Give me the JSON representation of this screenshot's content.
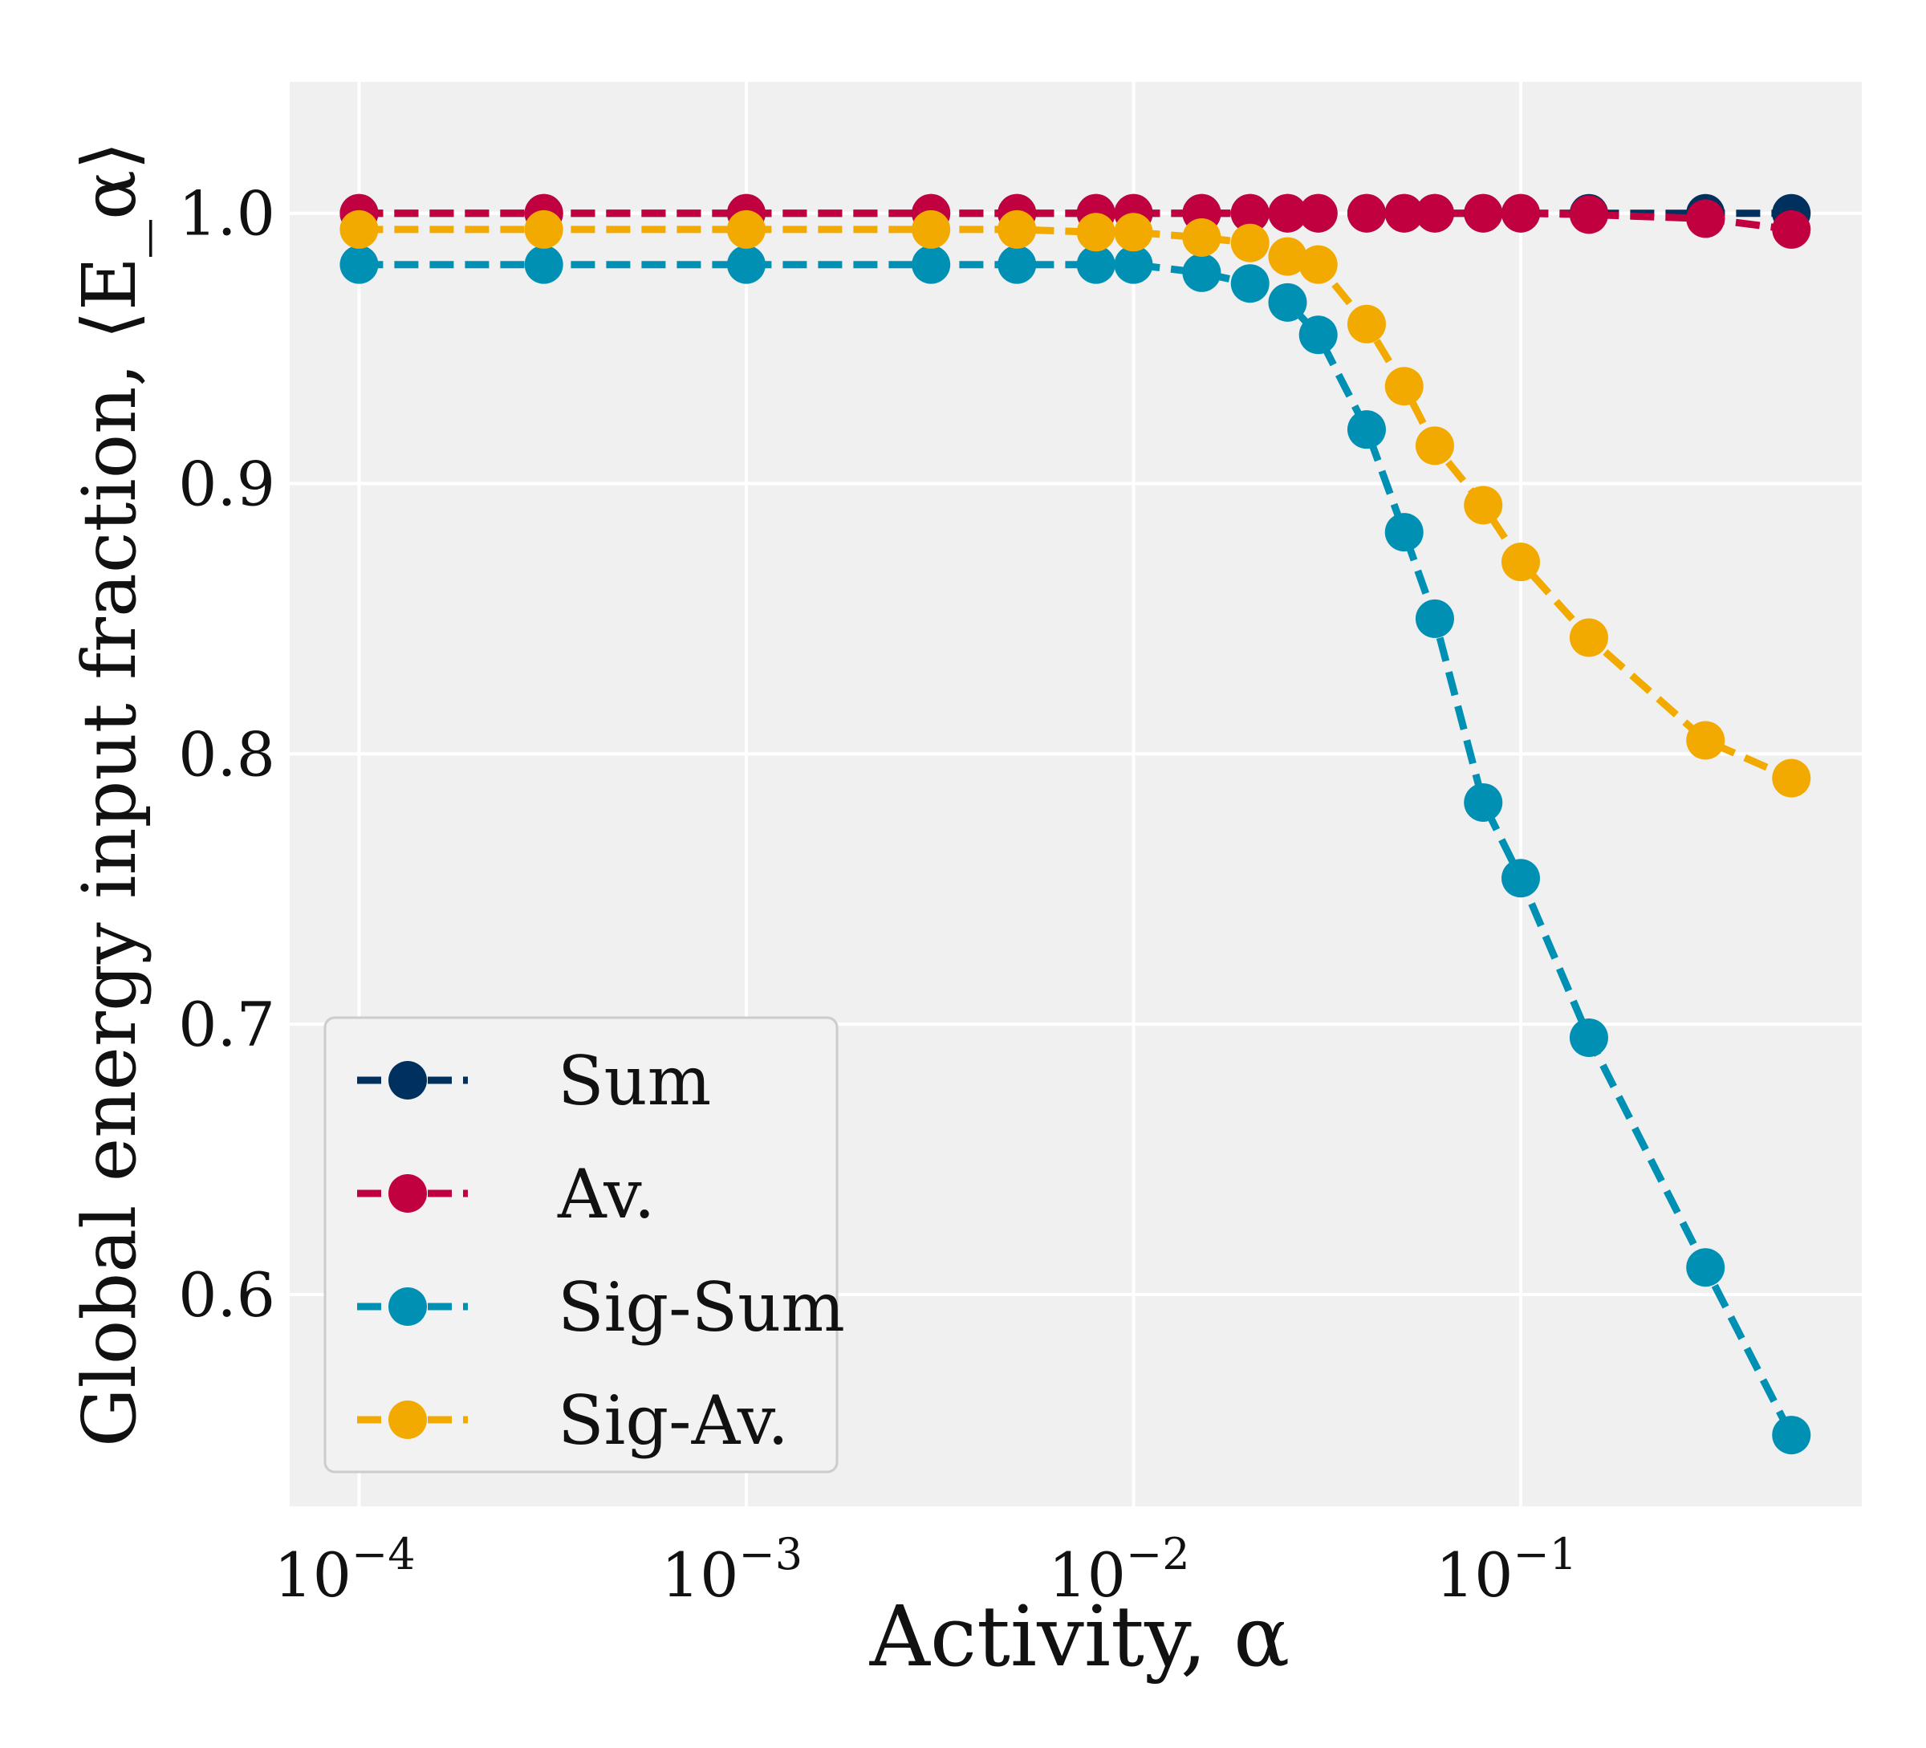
{
  "chart_data": {
    "type": "line",
    "title": "",
    "xlabel": "Activity, α",
    "ylabel": "Global energy input fraction, ⟨E_α⟩",
    "xscale": "log",
    "xlim": [
      6.62e-05,
      0.76
    ],
    "ylim": [
      0.5216,
      1.0486
    ],
    "grid": true,
    "background": "#f0f0f0",
    "legend_position": "lower-left",
    "x_ticks": [
      {
        "value": 0.0001,
        "base": "10",
        "exp": "−4"
      },
      {
        "value": 0.001,
        "base": "10",
        "exp": "−3"
      },
      {
        "value": 0.01,
        "base": "10",
        "exp": "−2"
      },
      {
        "value": 0.1,
        "base": "10",
        "exp": "−1"
      }
    ],
    "y_ticks": [
      {
        "value": 0.6,
        "label": "0.6"
      },
      {
        "value": 0.7,
        "label": "0.7"
      },
      {
        "value": 0.8,
        "label": "0.8"
      },
      {
        "value": 0.9,
        "label": "0.9"
      },
      {
        "value": 1.0,
        "label": "1.0"
      }
    ],
    "x": [
      0.0001,
      0.0003,
      0.001,
      0.003,
      0.005,
      0.008,
      0.01,
      0.015,
      0.02,
      0.025,
      0.03,
      0.04,
      0.05,
      0.06,
      0.08,
      0.1,
      0.15,
      0.3,
      0.5
    ],
    "series": [
      {
        "name": "Sum",
        "color": "#00305e",
        "values": [
          1.0,
          1.0,
          1.0,
          1.0,
          1.0,
          1.0,
          1.0,
          1.0,
          1.0,
          1.0,
          1.0,
          1.0,
          1.0,
          1.0,
          1.0,
          1.0,
          1.0,
          1.0,
          1.0
        ]
      },
      {
        "name": "Av.",
        "color": "#c1003f",
        "values": [
          1.0,
          1.0,
          1.0,
          1.0,
          1.0,
          1.0,
          1.0,
          1.0,
          1.0,
          1.0,
          1.0,
          1.0,
          1.0,
          1.0,
          1.0,
          1.0,
          0.9995,
          0.998,
          0.994
        ]
      },
      {
        "name": "Sig-Sum",
        "color": "#0090b4",
        "values": [
          0.981,
          0.981,
          0.981,
          0.981,
          0.981,
          0.981,
          0.981,
          0.978,
          0.974,
          0.967,
          0.955,
          0.92,
          0.882,
          0.85,
          0.782,
          0.754,
          0.695,
          0.61,
          0.548
        ]
      },
      {
        "name": "Sig-Av.",
        "color": "#f2aa00",
        "values": [
          0.994,
          0.994,
          0.994,
          0.994,
          0.994,
          0.993,
          0.993,
          0.991,
          0.989,
          0.984,
          0.981,
          0.959,
          0.936,
          0.914,
          0.892,
          0.871,
          0.843,
          0.805,
          0.791
        ]
      }
    ]
  }
}
